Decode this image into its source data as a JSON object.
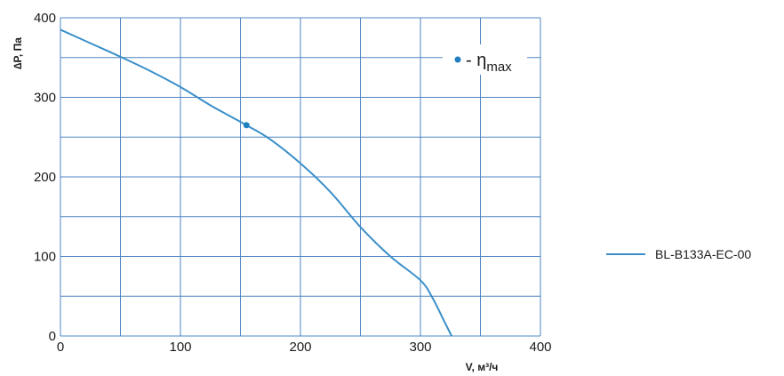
{
  "chart_data": {
    "type": "line",
    "xlabel": "V, м³/ч",
    "ylabel": "∆P, Па",
    "xlim": [
      0,
      400
    ],
    "ylim": [
      0,
      400
    ],
    "x_ticks": [
      0,
      100,
      200,
      300,
      400
    ],
    "y_ticks": [
      0,
      100,
      200,
      300,
      400
    ],
    "x_grid_step": 50,
    "y_grid_step": 50,
    "grid": true,
    "legend_placement": "right",
    "series": [
      {
        "name": "BL-B133A-EC-00",
        "color": "#3a8fc9",
        "x": [
          0,
          25,
          50,
          75,
          100,
          125,
          155,
          175,
          200,
          225,
          250,
          275,
          300,
          310,
          320,
          326
        ],
        "y": [
          385,
          368,
          351,
          333,
          313,
          290,
          265,
          247,
          217,
          181,
          137,
          100,
          70,
          48,
          18,
          0
        ]
      }
    ],
    "markers": [
      {
        "x": 155,
        "y": 265,
        "color": "#1f7fc0"
      }
    ],
    "annotation": {
      "prefix": "- η",
      "subscript": "max",
      "marker_color": "#1f7fc0"
    }
  }
}
